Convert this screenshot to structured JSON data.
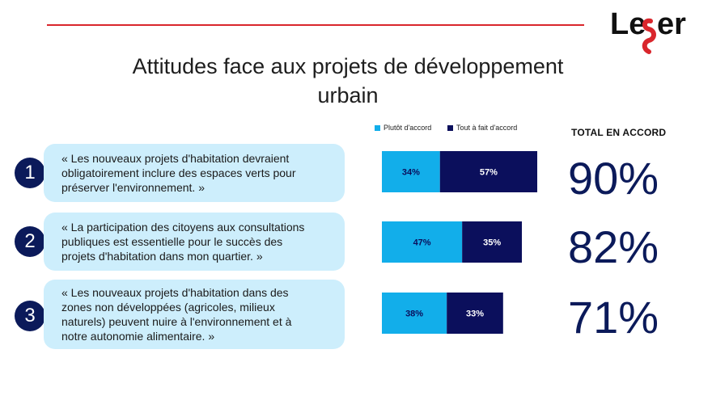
{
  "brand": {
    "logo_text": "Leger",
    "accent": "#d9262c"
  },
  "title": "Attitudes face aux projets de développement urbain",
  "chart_data": {
    "type": "bar",
    "orientation": "horizontal",
    "stacked": true,
    "categories": [
      "1",
      "2",
      "3"
    ],
    "series": [
      {
        "name": "Plutôt d'accord",
        "color": "#12aeea",
        "values": [
          34,
          47,
          38
        ],
        "labels": [
          "34%",
          "47%",
          "38%"
        ]
      },
      {
        "name": "Tout à fait d'accord",
        "color": "#0b0f5c",
        "values": [
          57,
          35,
          33
        ],
        "labels": [
          "57%",
          "35%",
          "33%"
        ]
      }
    ],
    "xlim": [
      0,
      100
    ],
    "legend_position": "top",
    "totals_header": "TOTAL  EN ACCORD",
    "totals": [
      90,
      82,
      71
    ],
    "totals_labels": [
      "90%",
      "82%",
      "71%"
    ]
  },
  "statements": [
    {
      "number": "1",
      "text": "« Les nouveaux projets d'habitation devraient\nobligatoirement inclure des espaces verts pour\npréserver l'environnement. »"
    },
    {
      "number": "2",
      "text": "« La participation des citoyens aux consultations\npubliques est essentielle pour le succès des\nprojets d'habitation dans mon quartier. »"
    },
    {
      "number": "3",
      "text": "« Les nouveaux projets d'habitation dans des\nzones non développées (agricoles, milieux\nnaturels) peuvent nuire à l'environnement et à\nnotre autonomie alimentaire. »"
    }
  ]
}
